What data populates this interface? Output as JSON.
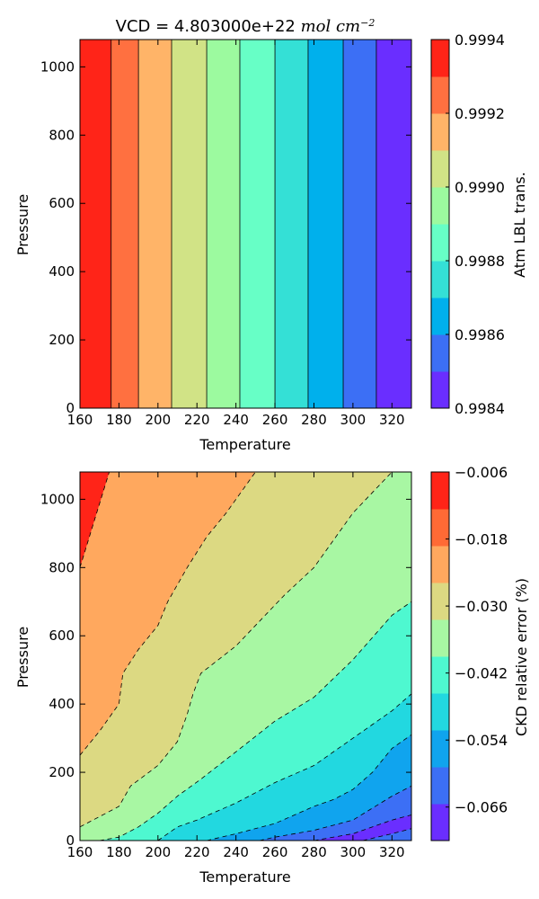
{
  "chart_data": [
    {
      "type": "filled-contour",
      "title_prefix": "VCD = 4.803000e+22 ",
      "title_math": "mol cm",
      "title_sup": "−2",
      "xlabel": "Temperature",
      "ylabel": "Pressure",
      "xlim": [
        160,
        330
      ],
      "ylim": [
        0,
        1080
      ],
      "xticks": [
        "160",
        "180",
        "200",
        "220",
        "240",
        "260",
        "280",
        "300",
        "320"
      ],
      "xtick_values": [
        160,
        180,
        200,
        220,
        240,
        260,
        280,
        300,
        320
      ],
      "yticks": [
        "0",
        "200",
        "400",
        "600",
        "800",
        "1000"
      ],
      "ytick_values": [
        0,
        200,
        400,
        600,
        800,
        1000
      ],
      "colorbar": {
        "label": "Atm LBL trans.",
        "range": [
          0.9984,
          0.9994
        ],
        "tick_labels": [
          "0.9984",
          "0.9986",
          "0.9988",
          "0.9990",
          "0.9992",
          "0.9994"
        ],
        "tick_values": [
          0.9984,
          0.9986,
          0.9988,
          0.999,
          0.9992,
          0.9994
        ],
        "colors": [
          "#6a2eff",
          "#3c6ff5",
          "#00b0ec",
          "#34e0d6",
          "#67ffc6",
          "#9cfa9f",
          "#d1e386",
          "#ffb468",
          "#ff7040",
          "#ff2418"
        ]
      },
      "bands": [
        {
          "x0": 160,
          "x1": 176,
          "level": 9
        },
        {
          "x0": 176,
          "x1": 190,
          "level": 8
        },
        {
          "x0": 190,
          "x1": 207,
          "level": 7
        },
        {
          "x0": 207,
          "x1": 225,
          "level": 6
        },
        {
          "x0": 225,
          "x1": 242,
          "level": 5
        },
        {
          "x0": 242,
          "x1": 260,
          "level": 4
        },
        {
          "x0": 260,
          "x1": 277,
          "level": 3
        },
        {
          "x0": 277,
          "x1": 295,
          "level": 2
        },
        {
          "x0": 295,
          "x1": 312,
          "level": 1
        },
        {
          "x0": 312,
          "x1": 330,
          "level": 0
        }
      ]
    },
    {
      "type": "filled-contour",
      "xlabel": "Temperature",
      "ylabel": "Pressure",
      "xlim": [
        160,
        330
      ],
      "ylim": [
        0,
        1080
      ],
      "xticks": [
        "160",
        "180",
        "200",
        "220",
        "240",
        "260",
        "280",
        "300",
        "320"
      ],
      "xtick_values": [
        160,
        180,
        200,
        220,
        240,
        260,
        280,
        300,
        320
      ],
      "yticks": [
        "0",
        "200",
        "400",
        "600",
        "800",
        "1000"
      ],
      "ytick_values": [
        0,
        200,
        400,
        600,
        800,
        1000
      ],
      "colorbar": {
        "label": "CKD relative error (%)",
        "range": [
          -0.072,
          -0.006
        ],
        "tick_labels": [
          "−0.066",
          "−0.054",
          "−0.042",
          "−0.030",
          "−0.018",
          "−0.006"
        ],
        "tick_values": [
          -0.066,
          -0.054,
          -0.042,
          -0.03,
          -0.018,
          -0.006
        ],
        "colors": [
          "#6a2eff",
          "#3c6ff5",
          "#10a4ee",
          "#22d8e0",
          "#4ef8d0",
          "#a8f7a3",
          "#dcd982",
          "#ffa85e",
          "#ff6a35",
          "#ff2418"
        ]
      },
      "contours": [
        [
          [
            160,
            800
          ],
          [
            175,
            1080
          ]
        ],
        [
          [
            160,
            250
          ],
          [
            170,
            320
          ],
          [
            180,
            400
          ],
          [
            182,
            490
          ],
          [
            190,
            560
          ],
          [
            200,
            630
          ],
          [
            205,
            700
          ],
          [
            215,
            800
          ],
          [
            225,
            890
          ],
          [
            235,
            960
          ],
          [
            250,
            1080
          ]
        ],
        [
          [
            160,
            40
          ],
          [
            170,
            70
          ],
          [
            180,
            100
          ],
          [
            186,
            160
          ],
          [
            200,
            220
          ],
          [
            210,
            290
          ],
          [
            215,
            370
          ],
          [
            218,
            430
          ],
          [
            222,
            490
          ],
          [
            240,
            570
          ],
          [
            255,
            660
          ],
          [
            265,
            720
          ],
          [
            280,
            800
          ],
          [
            290,
            880
          ],
          [
            300,
            960
          ],
          [
            320,
            1080
          ]
        ],
        [
          [
            170,
            0
          ],
          [
            180,
            10
          ],
          [
            190,
            40
          ],
          [
            200,
            80
          ],
          [
            210,
            130
          ],
          [
            222,
            180
          ],
          [
            240,
            260
          ],
          [
            260,
            350
          ],
          [
            280,
            420
          ],
          [
            300,
            530
          ],
          [
            320,
            660
          ],
          [
            330,
            700
          ]
        ],
        [
          [
            200,
            0
          ],
          [
            210,
            40
          ],
          [
            220,
            60
          ],
          [
            224,
            70
          ],
          [
            240,
            110
          ],
          [
            260,
            170
          ],
          [
            280,
            220
          ],
          [
            300,
            300
          ],
          [
            320,
            380
          ],
          [
            330,
            430
          ]
        ],
        [
          [
            225,
            0
          ],
          [
            240,
            20
          ],
          [
            260,
            50
          ],
          [
            280,
            100
          ],
          [
            290,
            120
          ],
          [
            300,
            150
          ],
          [
            310,
            200
          ],
          [
            320,
            270
          ],
          [
            330,
            310
          ]
        ],
        [
          [
            252,
            0
          ],
          [
            260,
            10
          ],
          [
            280,
            30
          ],
          [
            300,
            60
          ],
          [
            320,
            130
          ],
          [
            330,
            160
          ]
        ],
        [
          [
            280,
            0
          ],
          [
            300,
            20
          ],
          [
            320,
            60
          ],
          [
            330,
            75
          ]
        ],
        [
          [
            305,
            0
          ],
          [
            320,
            20
          ],
          [
            330,
            35
          ]
        ]
      ]
    }
  ]
}
